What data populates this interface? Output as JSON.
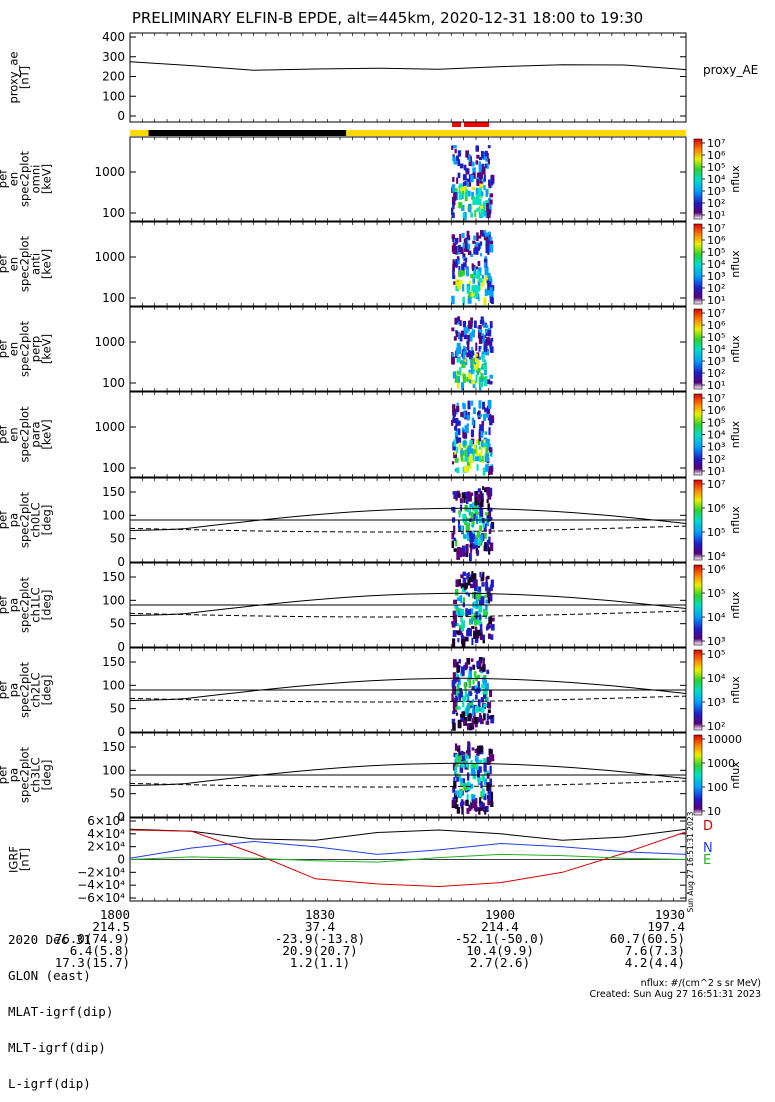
{
  "title": "PRELIMINARY ELFIN-B EPDE, alt=445km, 2020-12-31 18:00 to 19:30",
  "chart_data": {
    "type": "multi-panel spectrogram",
    "x_range": [
      "18:00",
      "19:30"
    ],
    "x_tick_labels": [
      "1800",
      "1830",
      "1900",
      "1930"
    ],
    "colors": {
      "black_bar": "#000000",
      "yellow_bar": "#ffd800",
      "red_marker": "#ff0000",
      "D_line": "#d40000",
      "N_line": "#1f3fe0",
      "E_line": "#22b422"
    },
    "status_bar": {
      "segments": [
        {
          "from": "18:00",
          "to": "18:03",
          "color": "yellow"
        },
        {
          "from": "18:03",
          "to": "18:35",
          "color": "black"
        },
        {
          "from": "18:35",
          "to": "19:30",
          "color": "yellow"
        }
      ],
      "red_markers": [
        "18:54-18:56",
        "18:56-19:00"
      ]
    },
    "panels": [
      {
        "id": "proxy_ae",
        "ylabel": [
          "proxy_ae",
          "[nT]"
        ],
        "yticks": [
          "400",
          "300",
          "200",
          "100",
          "0"
        ],
        "ylim": [
          0,
          400
        ],
        "legend": "proxy_AE",
        "series": {
          "name": "proxy_AE",
          "t_min": [
            0,
            10,
            20,
            30,
            40,
            50,
            60,
            70,
            80,
            90
          ],
          "values": [
            275,
            255,
            232,
            238,
            242,
            237,
            250,
            260,
            258,
            235
          ]
        }
      },
      {
        "id": "en-omni",
        "ylabel": [
          "elb",
          "pef",
          "en",
          "spec2plot",
          "omni",
          "[keV]"
        ],
        "yticks": [
          "1000",
          "100"
        ],
        "cbar_ticks": [
          "10⁷",
          "10⁶",
          "10⁵",
          "10⁴",
          "10³",
          "10²",
          "10¹"
        ],
        "cbar_label": "nflux"
      },
      {
        "id": "en-anti",
        "ylabel": [
          "elb",
          "pef",
          "en",
          "spec2plot",
          "anti",
          "[keV]"
        ],
        "yticks": [
          "1000",
          "100"
        ],
        "cbar_ticks": [
          "10⁷",
          "10⁶",
          "10⁵",
          "10⁴",
          "10³",
          "10²",
          "10¹"
        ],
        "cbar_label": "nflux"
      },
      {
        "id": "en-perp",
        "ylabel": [
          "elb",
          "pef",
          "en",
          "spec2plot",
          "perp",
          "[keV]"
        ],
        "yticks": [
          "1000",
          "100"
        ],
        "cbar_ticks": [
          "10⁷",
          "10⁶",
          "10⁵",
          "10⁴",
          "10³",
          "10²",
          "10¹"
        ],
        "cbar_label": "nflux"
      },
      {
        "id": "en-para",
        "ylabel": [
          "elb",
          "pef",
          "en",
          "spec2plot",
          "para",
          "[keV]"
        ],
        "yticks": [
          "1000",
          "100"
        ],
        "cbar_ticks": [
          "10⁷",
          "10⁶",
          "10⁵",
          "10⁴",
          "10³",
          "10²",
          "10¹"
        ],
        "cbar_label": "nflux"
      },
      {
        "id": "pa-ch0",
        "ylabel": [
          "elb",
          "pef",
          "pa",
          "spec2plot",
          "ch0LC",
          "[deg]"
        ],
        "yticks": [
          "150",
          "100",
          "50",
          "0"
        ],
        "ylim": [
          0,
          180
        ],
        "cbar_ticks": [
          "10⁷",
          "10⁶",
          "10⁵",
          "10⁴"
        ],
        "cbar_label": "nflux"
      },
      {
        "id": "pa-ch1",
        "ylabel": [
          "elb",
          "pef",
          "pa",
          "spec2plot",
          "ch1LC",
          "[deg]"
        ],
        "yticks": [
          "150",
          "100",
          "50",
          "0"
        ],
        "ylim": [
          0,
          180
        ],
        "cbar_ticks": [
          "10⁶",
          "10⁵",
          "10⁴",
          "10³"
        ],
        "cbar_label": "nflux"
      },
      {
        "id": "pa-ch2",
        "ylabel": [
          "elb",
          "pef",
          "pa",
          "spec2plot",
          "ch2LC",
          "[deg]"
        ],
        "yticks": [
          "150",
          "100",
          "50",
          "0"
        ],
        "ylim": [
          0,
          180
        ],
        "cbar_ticks": [
          "10⁵",
          "10⁴",
          "10³",
          "10²"
        ],
        "cbar_label": "nflux"
      },
      {
        "id": "pa-ch3",
        "ylabel": [
          "elb",
          "pef",
          "pa",
          "spec2plot",
          "ch3LC",
          "[deg]"
        ],
        "yticks": [
          "150",
          "100",
          "50",
          "0"
        ],
        "ylim": [
          0,
          180
        ],
        "cbar_ticks": [
          "10000",
          "1000",
          "100",
          "10"
        ],
        "cbar_label": "nflux"
      },
      {
        "id": "igrf",
        "ylabel": [
          "IGRF",
          "[nT]"
        ],
        "yticks": [
          "6×10⁴",
          "4×10⁴",
          "2×10⁴",
          "0",
          "−2×10⁴",
          "−4×10⁴",
          "−6×10⁴"
        ],
        "ylim": [
          -60000,
          60000
        ],
        "legend": [
          "D",
          "N",
          "E"
        ],
        "series": [
          {
            "name": "D",
            "t_min": [
              0,
              10,
              20,
              30,
              40,
              50,
              60,
              70,
              80,
              90
            ],
            "values": [
              46000,
              44000,
              10000,
              -30000,
              -38000,
              -42000,
              -36000,
              -20000,
              10000,
              43000
            ]
          },
          {
            "name": "N",
            "t_min": [
              0,
              10,
              20,
              30,
              40,
              50,
              60,
              70,
              80,
              90
            ],
            "values": [
              2000,
              18000,
              28000,
              20000,
              8000,
              15000,
              25000,
              20000,
              12000,
              8000
            ]
          },
          {
            "name": "E",
            "t_min": [
              0,
              10,
              20,
              30,
              40,
              50,
              60,
              70,
              80,
              90
            ],
            "values": [
              0,
              4000,
              2000,
              -2000,
              -4000,
              3000,
              8000,
              6000,
              2000,
              0
            ]
          }
        ],
        "black_line": {
          "t_min": [
            0,
            10,
            20,
            30,
            40,
            50,
            60,
            70,
            80,
            90
          ],
          "values": [
            47000,
            44000,
            32000,
            30000,
            42000,
            46000,
            40000,
            30000,
            35000,
            47000
          ]
        }
      }
    ]
  },
  "sidebar_text": "Sun Aug 27 16:51:31 2023",
  "footer_table": {
    "rows": [
      {
        "label": "2020 Dec 31",
        "cols": [
          "1800",
          "1830",
          "1900",
          "1930"
        ]
      },
      {
        "label": "GLON (east)",
        "cols": [
          "214.5",
          "37.4",
          "214.4",
          "197.4"
        ]
      },
      {
        "label": "MLAT-igrf(dip)",
        "cols": [
          "76.0(74.9)",
          "-23.9(-13.8)",
          "-52.1(-50.0)",
          "60.7(60.5)"
        ]
      },
      {
        "label": "MLT-igrf(dip)",
        "cols": [
          "6.4(5.8)",
          "20.9(20.7)",
          "10.4(9.9)",
          "7.6(7.3)"
        ]
      },
      {
        "label": "L-igrf(dip)",
        "cols": [
          "17.3(15.7)",
          "1.2(1.1)",
          "2.7(2.6)",
          "4.2(4.4)"
        ]
      }
    ]
  },
  "nflux_unit": "nflux: #/(cm^2 s sr MeV)",
  "created": "Created: Sun Aug 27 16:51:31 2023"
}
